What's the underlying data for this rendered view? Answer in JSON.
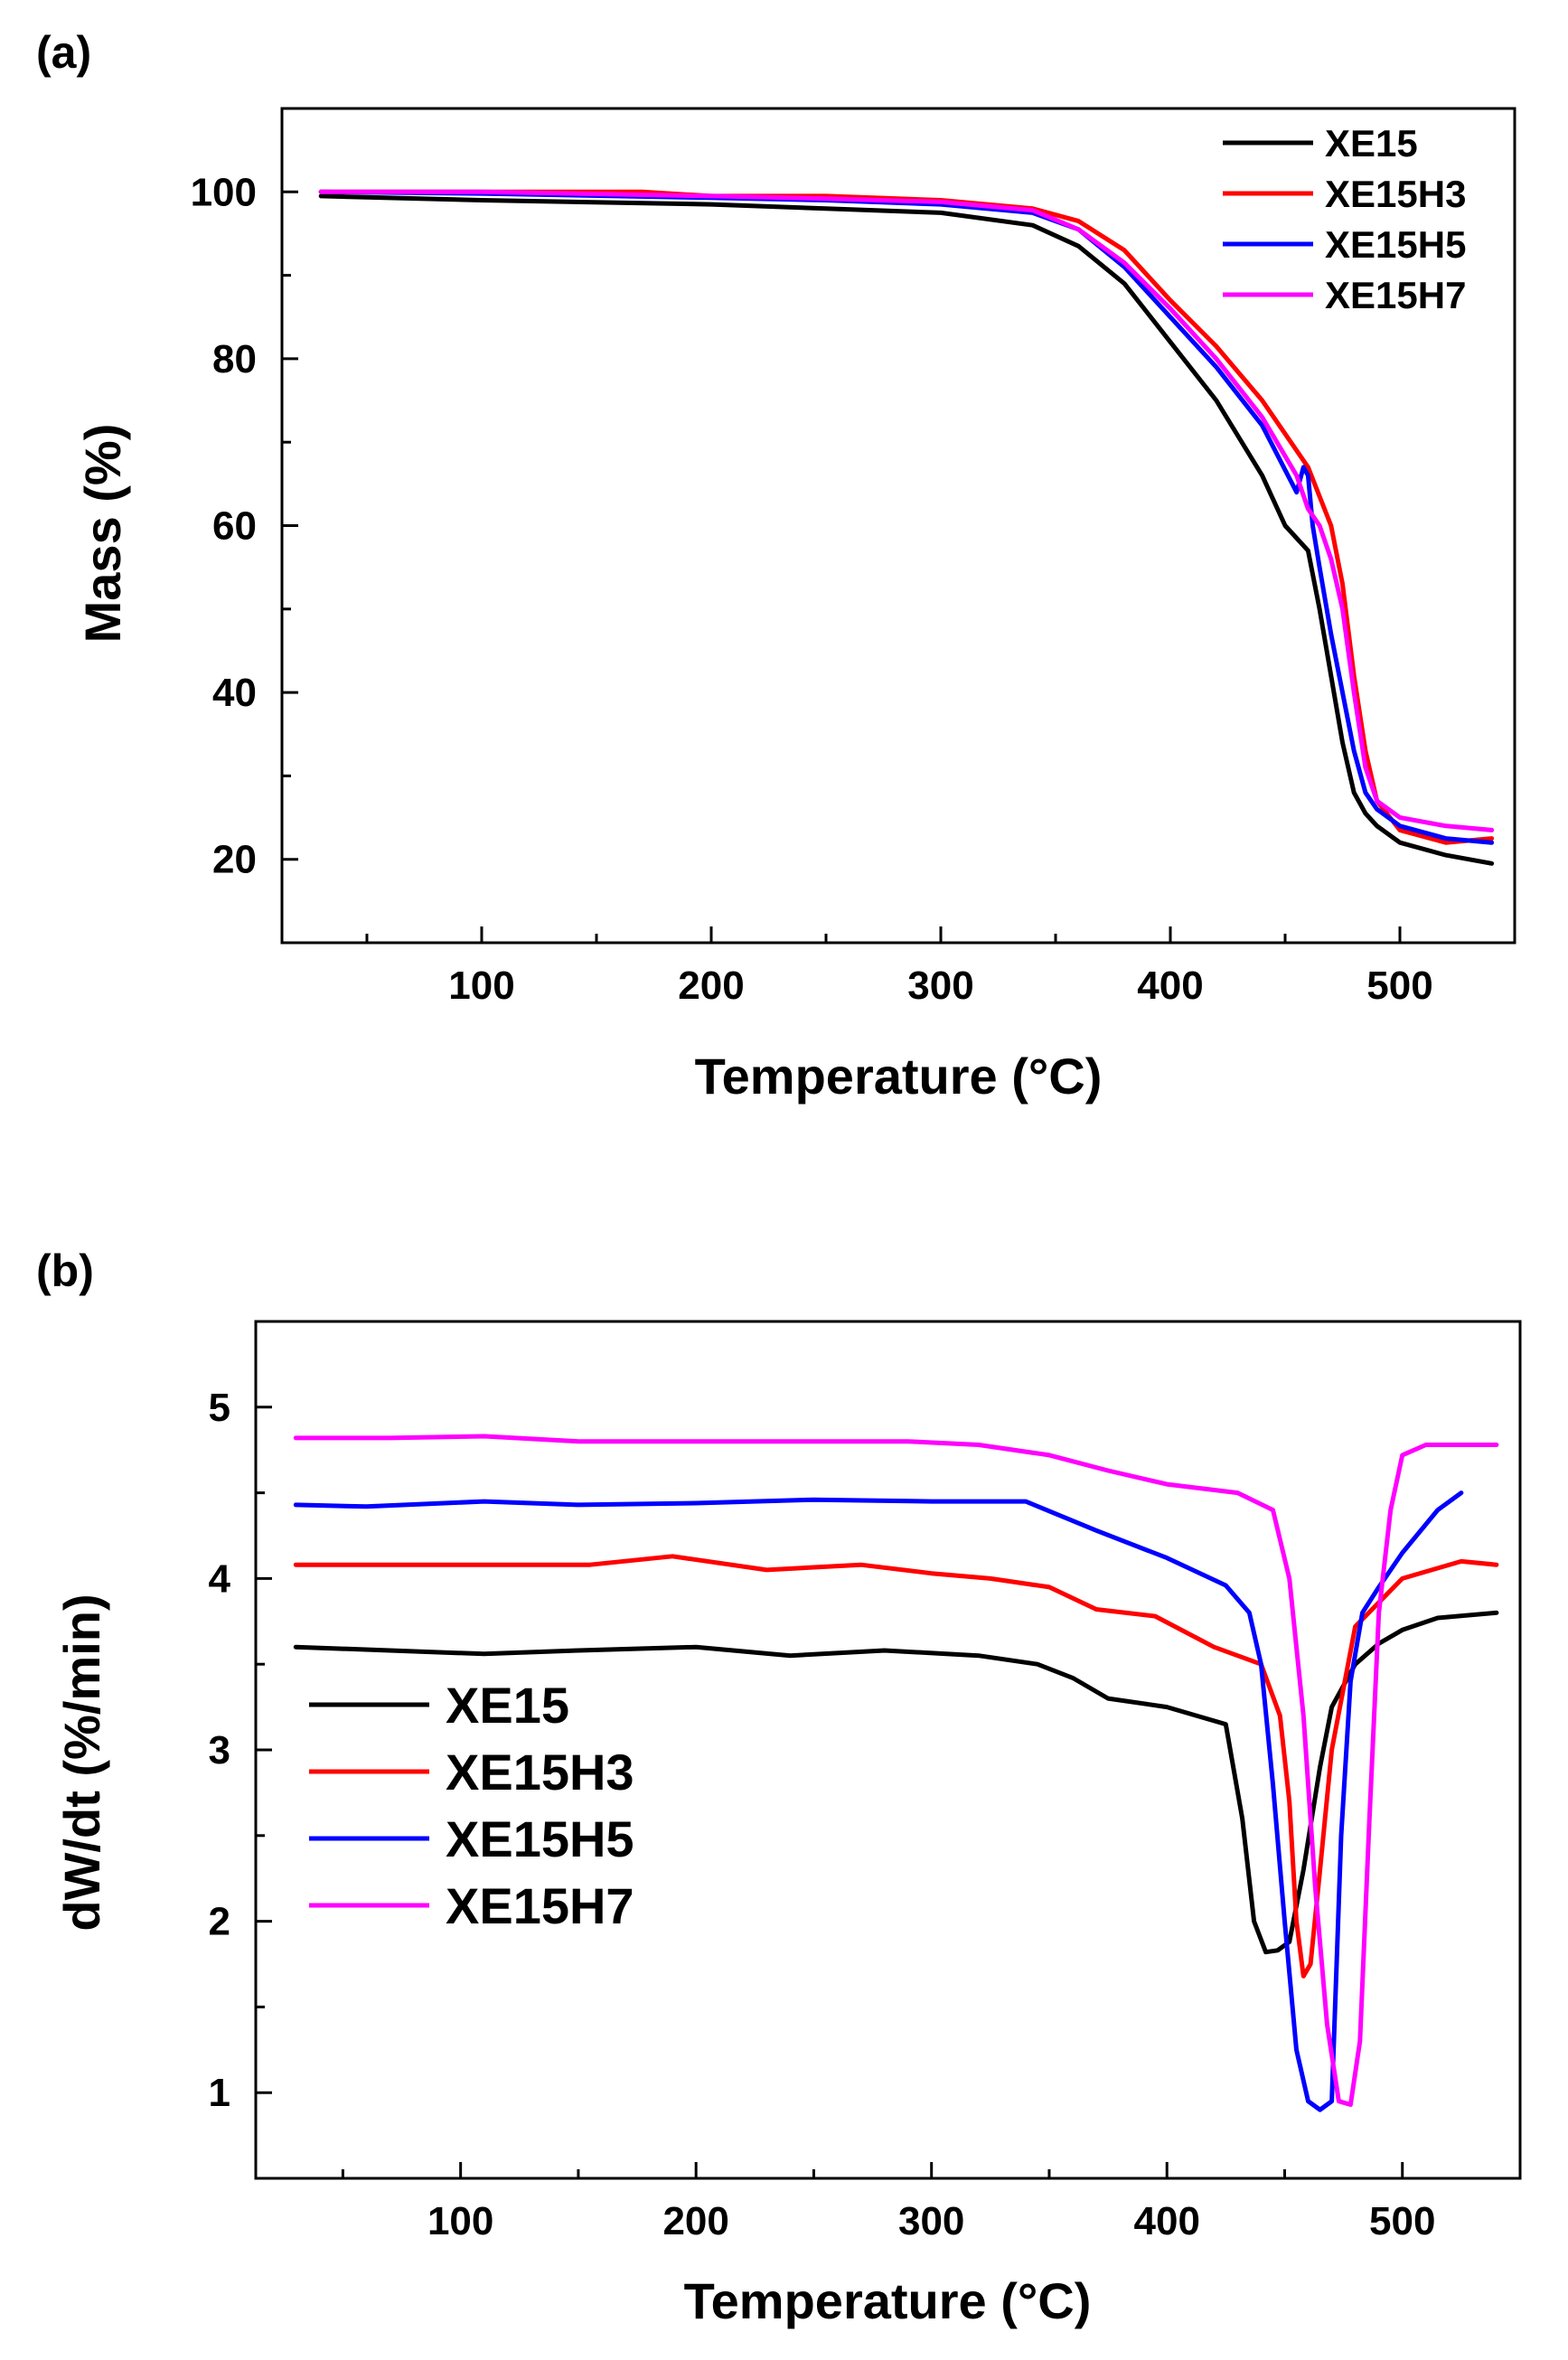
{
  "chart_data": [
    {
      "panel_label": "(a)",
      "type": "line",
      "title": "",
      "xlabel": "Temperature (°C)",
      "ylabel": "Mass (%)",
      "xlim": [
        13,
        550
      ],
      "ylim": [
        10,
        110
      ],
      "xticks": [
        100,
        200,
        300,
        400,
        500
      ],
      "yticks": [
        20,
        40,
        60,
        80,
        100
      ],
      "legend": {
        "position": "top-right"
      },
      "series": [
        {
          "name": "XE15",
          "color": "#000000",
          "x": [
            30,
            100,
            200,
            250,
            300,
            340,
            360,
            380,
            400,
            420,
            440,
            450,
            460,
            465,
            470,
            475,
            480,
            485,
            490,
            500,
            520,
            540
          ],
          "y": [
            99.5,
            99,
            98.5,
            98,
            97.5,
            96,
            93.5,
            89,
            82,
            75,
            66,
            60,
            57,
            50,
            42,
            34,
            28,
            25.5,
            24,
            22,
            20.5,
            19.5
          ]
        },
        {
          "name": "XE15H3",
          "color": "#ff0000",
          "x": [
            30,
            100,
            170,
            200,
            250,
            300,
            340,
            360,
            380,
            400,
            420,
            440,
            460,
            470,
            475,
            480,
            485,
            490,
            500,
            520,
            540
          ],
          "y": [
            100,
            100,
            100,
            99.5,
            99.5,
            99,
            98,
            96.5,
            93,
            87,
            81.5,
            75,
            67,
            60,
            53,
            42,
            33,
            27,
            23.5,
            22,
            22.5
          ]
        },
        {
          "name": "XE15H5",
          "color": "#0000ff",
          "x": [
            30,
            100,
            200,
            250,
            300,
            340,
            360,
            380,
            400,
            420,
            440,
            455,
            458,
            460,
            462,
            465,
            470,
            475,
            480,
            485,
            490,
            500,
            520,
            540
          ],
          "y": [
            100,
            99.8,
            99.3,
            99,
            98.5,
            97.5,
            95.5,
            91,
            85,
            79,
            72,
            64,
            67,
            66,
            60,
            55,
            47,
            40,
            33,
            28,
            26,
            24,
            22.5,
            22
          ]
        },
        {
          "name": "XE15H7",
          "color": "#ff00ff",
          "x": [
            30,
            100,
            200,
            250,
            300,
            340,
            360,
            380,
            400,
            420,
            440,
            455,
            460,
            465,
            470,
            475,
            480,
            485,
            490,
            500,
            520,
            540
          ],
          "y": [
            100,
            100,
            99.5,
            99.2,
            98.8,
            97.8,
            95.5,
            91.5,
            86,
            80,
            73,
            66,
            62,
            60,
            56,
            50,
            40,
            31,
            27,
            25,
            24,
            23.5
          ]
        }
      ]
    },
    {
      "panel_label": "(b)",
      "type": "line",
      "title": "",
      "xlabel": "Temperature (°C)",
      "ylabel": "dW/dt (%/min)",
      "xlim": [
        13,
        550
      ],
      "ylim": [
        0.5,
        5.5
      ],
      "xticks": [
        100,
        200,
        300,
        400,
        500
      ],
      "yticks": [
        1,
        2,
        3,
        4,
        5
      ],
      "legend": {
        "position": "left"
      },
      "series": [
        {
          "name": "XE15",
          "color": "#000000",
          "x": [
            30,
            70,
            110,
            150,
            200,
            240,
            280,
            320,
            345,
            360,
            375,
            400,
            425,
            432,
            437,
            442,
            447,
            452,
            458,
            465,
            470,
            480,
            490,
            500,
            515,
            540
          ],
          "y": [
            3.6,
            3.58,
            3.56,
            3.58,
            3.6,
            3.55,
            3.58,
            3.55,
            3.5,
            3.42,
            3.3,
            3.25,
            3.15,
            2.6,
            2.0,
            1.82,
            1.83,
            1.88,
            2.3,
            2.9,
            3.25,
            3.5,
            3.62,
            3.7,
            3.77,
            3.8
          ]
        },
        {
          "name": "XE15H3",
          "color": "#ff0000",
          "x": [
            30,
            80,
            155,
            190,
            230,
            270,
            300,
            325,
            350,
            370,
            395,
            420,
            440,
            448,
            452,
            455,
            458,
            461,
            465,
            470,
            480,
            500,
            525,
            540
          ],
          "y": [
            4.08,
            4.08,
            4.08,
            4.13,
            4.05,
            4.08,
            4.03,
            4.0,
            3.95,
            3.82,
            3.78,
            3.6,
            3.5,
            3.2,
            2.7,
            2.0,
            1.68,
            1.75,
            2.3,
            3.0,
            3.72,
            4.0,
            4.1,
            4.08
          ]
        },
        {
          "name": "XE15H5",
          "color": "#0000ff",
          "x": [
            30,
            60,
            110,
            150,
            200,
            250,
            300,
            340,
            370,
            400,
            425,
            435,
            440,
            445,
            450,
            455,
            460,
            465,
            470,
            474,
            478,
            483,
            490,
            500,
            515,
            525
          ],
          "y": [
            4.43,
            4.42,
            4.45,
            4.43,
            4.44,
            4.46,
            4.45,
            4.45,
            4.28,
            4.12,
            3.96,
            3.8,
            3.5,
            2.8,
            2.0,
            1.25,
            0.95,
            0.9,
            0.95,
            2.5,
            3.4,
            3.8,
            3.95,
            4.15,
            4.4,
            4.5
          ]
        },
        {
          "name": "XE15H7",
          "color": "#ff00ff",
          "x": [
            30,
            70,
            110,
            150,
            200,
            250,
            290,
            320,
            350,
            375,
            400,
            430,
            445,
            452,
            458,
            463,
            468,
            473,
            478,
            482,
            486,
            490,
            495,
            500,
            510,
            540
          ],
          "y": [
            4.82,
            4.82,
            4.83,
            4.8,
            4.8,
            4.8,
            4.8,
            4.78,
            4.72,
            4.63,
            4.55,
            4.5,
            4.4,
            4.0,
            3.2,
            2.2,
            1.4,
            0.95,
            0.93,
            1.3,
            2.6,
            3.8,
            4.4,
            4.72,
            4.78,
            4.78
          ]
        }
      ]
    }
  ]
}
